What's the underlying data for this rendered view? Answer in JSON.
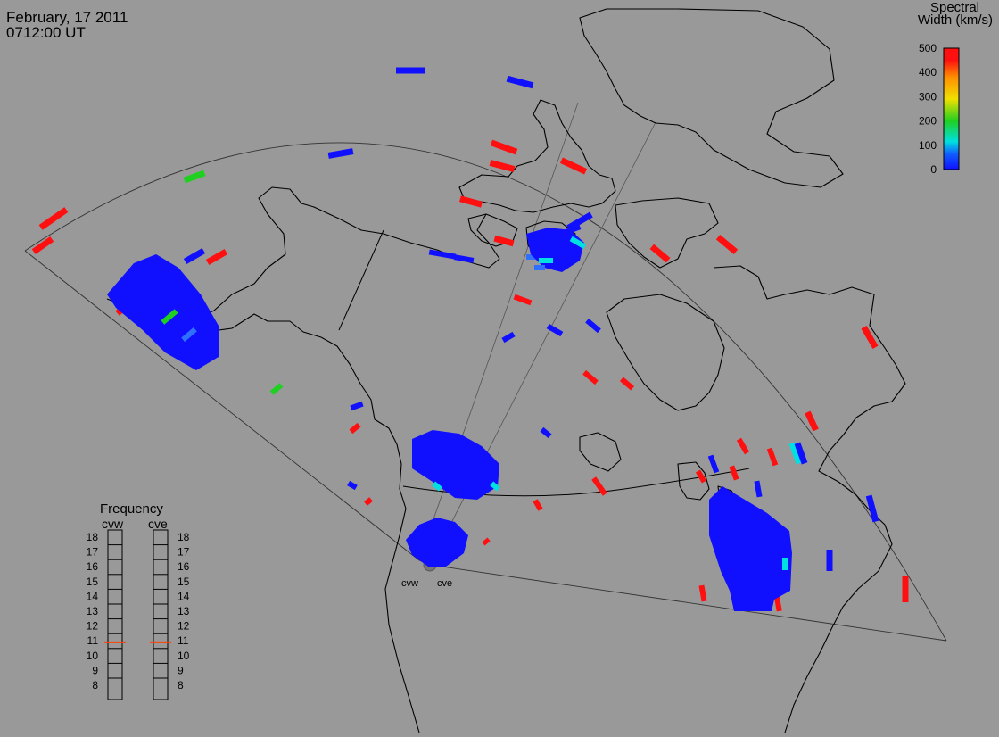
{
  "header": {
    "date": "February, 17 2011",
    "time": "0712:00 UT"
  },
  "colorbar": {
    "title_line1": "Spectral",
    "title_line2": "Width (km/s)",
    "ticks": [
      "500",
      "400",
      "300",
      "200",
      "100",
      "0"
    ],
    "colors": {
      "low": "#1010ff",
      "cyan": "#00e0e0",
      "green": "#20d020",
      "yellow": "#f0e000",
      "orange": "#ff9000",
      "high": "#ff1010"
    }
  },
  "frequency": {
    "title": "Frequency",
    "radars": [
      {
        "label": "cvw",
        "value_mhz": 10.9
      },
      {
        "label": "cve",
        "value_mhz": 10.9
      }
    ],
    "ticks": [
      "18",
      "17",
      "16",
      "15",
      "14",
      "13",
      "12",
      "11",
      "10",
      "9",
      "8"
    ],
    "marker_color": "#ff4000"
  },
  "radar_sites": [
    "cvw",
    "cve"
  ]
}
